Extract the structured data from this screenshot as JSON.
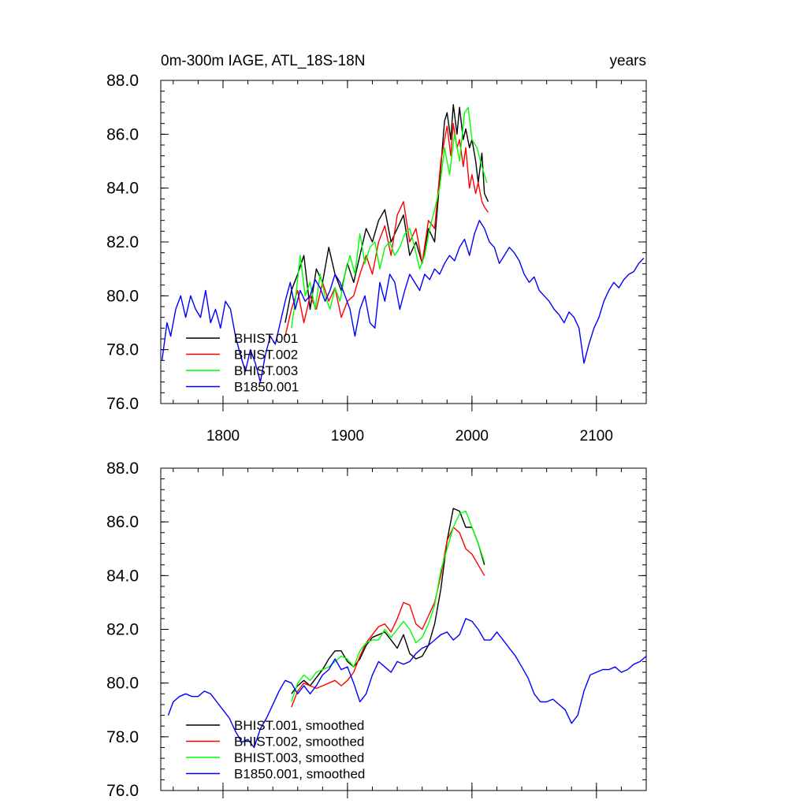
{
  "chart_data": [
    {
      "type": "line",
      "title": "0m-300m IAGE, ATL_18S-18N",
      "units": "years",
      "xlim": [
        1750,
        2140
      ],
      "ylim": [
        76.0,
        88.0
      ],
      "xticks": [
        1800,
        1900,
        2000,
        2100
      ],
      "xtick_labels": [
        "1800",
        "1900",
        "2000",
        "2100"
      ],
      "yticks": [
        76.0,
        78.0,
        80.0,
        82.0,
        84.0,
        86.0,
        88.0
      ],
      "ytick_labels": [
        "76.0",
        "78.0",
        "80.0",
        "82.0",
        "84.0",
        "86.0",
        "88.0"
      ],
      "legend_position": "bottom-left",
      "series": [
        {
          "name": "BHIST.001",
          "color": "#000000",
          "x": [
            1850,
            1855,
            1860,
            1865,
            1870,
            1875,
            1880,
            1885,
            1890,
            1895,
            1900,
            1905,
            1910,
            1915,
            1920,
            1925,
            1930,
            1935,
            1940,
            1945,
            1950,
            1955,
            1960,
            1965,
            1970,
            1975,
            1978,
            1980,
            1983,
            1985,
            1988,
            1990,
            1993,
            1995,
            1998,
            2000,
            2003,
            2005,
            2008,
            2010,
            2013
          ],
          "y": [
            79.0,
            80.2,
            80.8,
            81.5,
            79.5,
            81.0,
            80.5,
            81.8,
            80.8,
            80.2,
            81.2,
            80.5,
            81.5,
            82.5,
            82.0,
            82.8,
            83.2,
            82.0,
            82.5,
            83.0,
            81.5,
            82.0,
            81.2,
            82.5,
            82.0,
            84.8,
            86.5,
            86.8,
            85.8,
            87.1,
            86.0,
            87.0,
            85.8,
            86.2,
            85.5,
            85.8,
            85.0,
            84.2,
            85.3,
            83.8,
            83.5
          ]
        },
        {
          "name": "BHIST.002",
          "color": "#ff0000",
          "x": [
            1850,
            1855,
            1860,
            1865,
            1870,
            1875,
            1880,
            1885,
            1890,
            1895,
            1900,
            1905,
            1910,
            1915,
            1920,
            1925,
            1930,
            1935,
            1940,
            1945,
            1950,
            1955,
            1960,
            1965,
            1970,
            1975,
            1978,
            1980,
            1983,
            1985,
            1988,
            1990,
            1993,
            1995,
            1998,
            2000,
            2003,
            2005,
            2008,
            2010,
            2013
          ],
          "y": [
            78.5,
            79.5,
            80.2,
            79.0,
            80.0,
            79.5,
            80.5,
            79.8,
            80.3,
            79.2,
            79.8,
            80.0,
            80.8,
            81.5,
            80.8,
            82.0,
            82.6,
            81.5,
            83.0,
            83.5,
            82.0,
            82.5,
            81.2,
            82.8,
            82.5,
            85.0,
            85.8,
            86.3,
            85.2,
            86.4,
            85.5,
            85.8,
            84.8,
            85.5,
            84.0,
            84.5,
            83.8,
            84.2,
            83.5,
            83.3,
            83.1
          ]
        },
        {
          "name": "BHIST.003",
          "color": "#00ff00",
          "x": [
            1855,
            1858,
            1862,
            1866,
            1870,
            1874,
            1878,
            1882,
            1886,
            1890,
            1894,
            1898,
            1902,
            1906,
            1910,
            1914,
            1918,
            1922,
            1926,
            1930,
            1934,
            1938,
            1942,
            1946,
            1950,
            1954,
            1958,
            1962,
            1966,
            1970,
            1974,
            1978,
            1982,
            1986,
            1990,
            1994,
            1997,
            2000,
            2004,
            2008,
            2012
          ],
          "y": [
            78.8,
            79.8,
            81.5,
            80.0,
            80.5,
            79.5,
            80.8,
            80.0,
            79.5,
            80.3,
            79.8,
            80.8,
            81.5,
            80.8,
            82.3,
            81.2,
            81.8,
            82.0,
            81.0,
            81.8,
            82.0,
            81.5,
            81.8,
            82.3,
            82.5,
            81.8,
            81.0,
            81.5,
            82.5,
            83.2,
            84.0,
            85.5,
            84.5,
            86.0,
            85.0,
            86.8,
            87.0,
            85.8,
            85.5,
            84.8,
            84.2
          ]
        },
        {
          "name": "B1850.001",
          "color": "#0000ff",
          "x": [
            1751,
            1755,
            1758,
            1762,
            1766,
            1770,
            1774,
            1778,
            1782,
            1786,
            1790,
            1794,
            1798,
            1802,
            1806,
            1810,
            1814,
            1818,
            1822,
            1826,
            1830,
            1834,
            1838,
            1842,
            1846,
            1850,
            1854,
            1858,
            1862,
            1866,
            1870,
            1874,
            1878,
            1882,
            1886,
            1890,
            1894,
            1898,
            1902,
            1906,
            1910,
            1914,
            1918,
            1922,
            1926,
            1930,
            1934,
            1938,
            1942,
            1946,
            1950,
            1954,
            1958,
            1962,
            1966,
            1970,
            1974,
            1978,
            1982,
            1986,
            1990,
            1994,
            1998,
            2002,
            2006,
            2010,
            2014,
            2018,
            2022,
            2026,
            2030,
            2034,
            2038,
            2042,
            2046,
            2050,
            2054,
            2058,
            2062,
            2066,
            2070,
            2074,
            2078,
            2082,
            2086,
            2090,
            2094,
            2098,
            2102,
            2106,
            2110,
            2114,
            2118,
            2122,
            2126,
            2130,
            2134,
            2138
          ],
          "y": [
            77.6,
            79.0,
            78.5,
            79.5,
            80.0,
            79.2,
            80.0,
            79.5,
            79.2,
            80.2,
            79.0,
            79.5,
            78.8,
            79.8,
            79.5,
            78.5,
            77.8,
            77.2,
            78.0,
            77.5,
            76.8,
            77.8,
            78.5,
            78.2,
            79.0,
            79.8,
            80.5,
            79.5,
            80.2,
            79.8,
            80.0,
            80.6,
            80.3,
            79.8,
            80.2,
            80.8,
            80.5,
            80.0,
            79.5,
            78.5,
            79.5,
            80.0,
            79.0,
            78.8,
            80.5,
            79.8,
            80.8,
            80.5,
            79.5,
            80.2,
            80.8,
            80.5,
            80.2,
            80.8,
            80.6,
            81.0,
            80.8,
            81.2,
            81.5,
            81.3,
            81.8,
            82.1,
            81.5,
            82.3,
            82.8,
            82.5,
            82.0,
            81.8,
            81.2,
            81.5,
            81.8,
            81.6,
            81.3,
            80.8,
            80.5,
            80.7,
            80.2,
            80.0,
            79.8,
            79.5,
            79.3,
            79.0,
            79.4,
            79.2,
            78.8,
            77.5,
            78.2,
            78.8,
            79.2,
            79.8,
            80.2,
            80.5,
            80.3,
            80.6,
            80.8,
            80.9,
            81.2,
            81.4
          ]
        }
      ]
    },
    {
      "type": "line",
      "title": "",
      "units": "",
      "xlim": [
        1750,
        2140
      ],
      "ylim": [
        76.0,
        88.0
      ],
      "xticks": [
        1800,
        1900,
        2000,
        2100
      ],
      "xtick_labels": [],
      "yticks": [
        76.0,
        78.0,
        80.0,
        82.0,
        84.0,
        86.0,
        88.0
      ],
      "ytick_labels": [
        "76.0",
        "78.0",
        "80.0",
        "82.0",
        "84.0",
        "86.0",
        "88.0"
      ],
      "legend_position": "bottom-left",
      "series": [
        {
          "name": "BHIST.001, smoothed",
          "color": "#000000",
          "x": [
            1855,
            1860,
            1865,
            1870,
            1875,
            1880,
            1885,
            1890,
            1895,
            1900,
            1905,
            1910,
            1915,
            1920,
            1925,
            1930,
            1935,
            1940,
            1945,
            1950,
            1955,
            1960,
            1965,
            1970,
            1975,
            1980,
            1985,
            1990,
            1995,
            2000,
            2005,
            2010
          ],
          "y": [
            79.6,
            79.9,
            80.1,
            79.9,
            80.2,
            80.5,
            80.9,
            81.2,
            81.2,
            80.8,
            80.6,
            80.9,
            81.4,
            81.7,
            81.8,
            81.9,
            81.6,
            81.3,
            81.8,
            81.1,
            80.9,
            81.0,
            81.4,
            82.2,
            83.5,
            85.3,
            86.5,
            86.4,
            85.8,
            85.8,
            85.2,
            84.4
          ]
        },
        {
          "name": "BHIST.002, smoothed",
          "color": "#ff0000",
          "x": [
            1855,
            1860,
            1865,
            1870,
            1875,
            1880,
            1885,
            1890,
            1895,
            1900,
            1905,
            1910,
            1915,
            1920,
            1925,
            1930,
            1935,
            1940,
            1945,
            1950,
            1955,
            1960,
            1965,
            1970,
            1975,
            1980,
            1985,
            1990,
            1995,
            2000,
            2005,
            2010
          ],
          "y": [
            79.1,
            79.7,
            80.0,
            79.9,
            79.8,
            79.9,
            80.0,
            80.1,
            79.9,
            80.1,
            80.4,
            81.0,
            81.5,
            81.8,
            82.1,
            82.2,
            81.9,
            82.4,
            83.0,
            82.9,
            82.2,
            82.0,
            82.5,
            83.0,
            84.0,
            85.3,
            85.8,
            85.6,
            85.0,
            84.8,
            84.4,
            84.0
          ]
        },
        {
          "name": "BHIST.003, smoothed",
          "color": "#00ff00",
          "x": [
            1855,
            1860,
            1865,
            1870,
            1875,
            1880,
            1885,
            1890,
            1895,
            1900,
            1905,
            1910,
            1915,
            1920,
            1925,
            1930,
            1935,
            1940,
            1945,
            1950,
            1955,
            1960,
            1965,
            1970,
            1975,
            1980,
            1985,
            1990,
            1995,
            2000,
            2005,
            2010
          ],
          "y": [
            79.3,
            80.0,
            80.3,
            80.1,
            80.4,
            80.5,
            80.6,
            80.8,
            81.0,
            80.9,
            80.6,
            81.2,
            81.5,
            81.6,
            81.6,
            82.0,
            81.7,
            82.0,
            82.3,
            82.0,
            81.5,
            81.7,
            82.2,
            82.9,
            84.2,
            85.0,
            85.8,
            86.3,
            86.4,
            85.8,
            85.2,
            84.5
          ]
        },
        {
          "name": "B1850.001, smoothed",
          "color": "#0000ff",
          "x": [
            1756,
            1760,
            1765,
            1770,
            1775,
            1780,
            1785,
            1790,
            1795,
            1800,
            1805,
            1810,
            1815,
            1820,
            1825,
            1830,
            1835,
            1840,
            1845,
            1850,
            1855,
            1860,
            1865,
            1870,
            1875,
            1880,
            1885,
            1890,
            1895,
            1900,
            1905,
            1910,
            1915,
            1920,
            1925,
            1930,
            1935,
            1940,
            1945,
            1950,
            1955,
            1960,
            1965,
            1970,
            1975,
            1980,
            1985,
            1990,
            1995,
            2000,
            2005,
            2010,
            2015,
            2020,
            2025,
            2030,
            2035,
            2040,
            2045,
            2050,
            2055,
            2060,
            2065,
            2070,
            2075,
            2080,
            2085,
            2090,
            2095,
            2100,
            2105,
            2110,
            2115,
            2120,
            2125,
            2130,
            2135,
            2140
          ],
          "y": [
            78.8,
            79.3,
            79.5,
            79.6,
            79.5,
            79.5,
            79.7,
            79.6,
            79.3,
            79.0,
            78.7,
            78.2,
            77.8,
            77.9,
            77.6,
            78.3,
            78.7,
            79.2,
            79.7,
            80.1,
            80.0,
            79.6,
            79.9,
            79.6,
            79.9,
            80.3,
            80.5,
            80.9,
            80.5,
            80.6,
            80.0,
            79.3,
            79.6,
            80.3,
            80.8,
            80.6,
            80.4,
            80.8,
            80.7,
            80.8,
            81.1,
            81.3,
            81.4,
            81.6,
            81.8,
            81.9,
            81.6,
            81.8,
            82.4,
            82.3,
            82.0,
            81.6,
            81.6,
            81.9,
            81.6,
            81.3,
            81.0,
            80.6,
            80.2,
            79.6,
            79.3,
            79.3,
            79.4,
            79.2,
            79.0,
            78.5,
            78.8,
            79.7,
            80.3,
            80.4,
            80.5,
            80.5,
            80.6,
            80.4,
            80.5,
            80.7,
            80.8,
            81.0
          ]
        }
      ]
    }
  ]
}
